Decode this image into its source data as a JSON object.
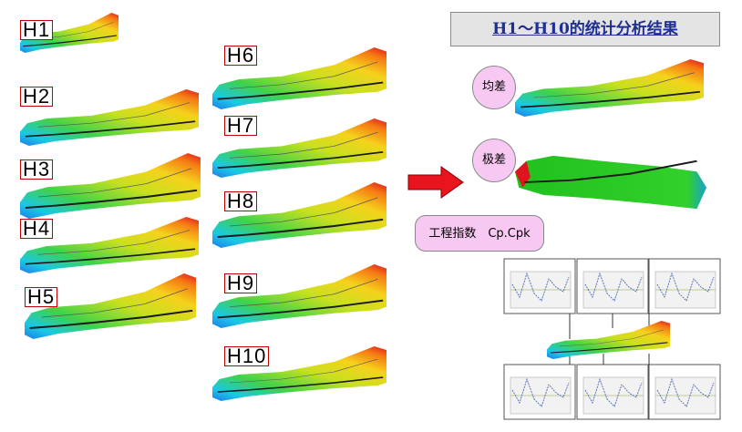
{
  "title": "H1～H10的统计分析结果",
  "labels": [
    "H1",
    "H2",
    "H3",
    "H4",
    "H5",
    "H6",
    "H7",
    "H8",
    "H9",
    "H10"
  ],
  "mean_label": "均差",
  "range_label": "极差",
  "index_label": "工程指数　Cp.Cpk"
}
